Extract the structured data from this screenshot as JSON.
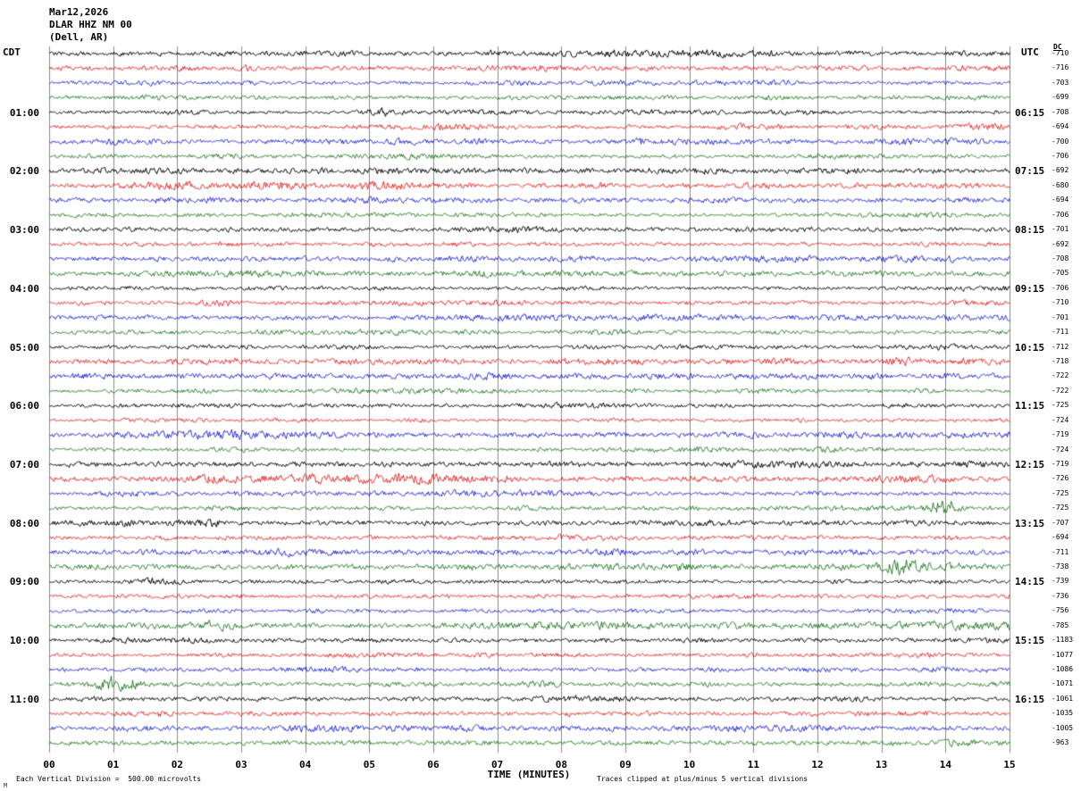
{
  "header": {
    "date_line": "Mar12,2026",
    "station_line": "DLAR HHZ NM 00",
    "location_line": "(Dell, AR)"
  },
  "axes": {
    "left_timezone": "CDT",
    "right_timezone": "UTC",
    "dc_label": "DC",
    "x_title": "TIME (MINUTES)"
  },
  "footer": {
    "division_note": "Each Vertical Division =  500.00 microvolts",
    "clip_note": "Traces clipped at plus/minus 5 vertical divisions",
    "corner_mark": "M"
  },
  "chart_data": {
    "type": "line",
    "title": "Helicorder seismogram DLAR HHZ NM 00 (Dell, AR) Mar12,2026",
    "xlabel": "TIME (MINUTES)",
    "x_range_minutes": [
      0,
      15
    ],
    "x_ticks": [
      "00",
      "01",
      "02",
      "03",
      "04",
      "05",
      "06",
      "07",
      "08",
      "09",
      "10",
      "11",
      "12",
      "13",
      "14",
      "15"
    ],
    "rows": 48,
    "minutes_per_row": 15,
    "row_color_cycle": [
      "#000000",
      "#dd0000",
      "#0000cc",
      "#006600"
    ],
    "grid_color": "#8a8a8a",
    "first_label_row": 4,
    "label_every_n_rows": 4,
    "left_time_labels": [
      "01:00",
      "02:00",
      "03:00",
      "04:00",
      "05:00",
      "06:00",
      "07:00",
      "08:00",
      "09:00",
      "10:00",
      "11:00"
    ],
    "right_time_labels": [
      "06:15",
      "07:15",
      "08:15",
      "09:15",
      "10:15",
      "11:15",
      "12:15",
      "13:15",
      "14:15",
      "15:15",
      "16:15"
    ],
    "dc_values": [
      -710,
      -716,
      -703,
      -699,
      -708,
      -694,
      -700,
      -706,
      -692,
      -680,
      -694,
      -706,
      -701,
      -692,
      -708,
      -705,
      -706,
      -710,
      -701,
      -711,
      -712,
      -718,
      -722,
      -722,
      -725,
      -724,
      -719,
      -724,
      -719,
      -726,
      -725,
      -725,
      -707,
      -694,
      -711,
      -738,
      -739,
      -736,
      -756,
      -785,
      -1183,
      -1077,
      -1086,
      -1071,
      -1061,
      -1035,
      -1005,
      -963
    ],
    "events": [
      {
        "row": 4,
        "start_min": 4.7,
        "end_min": 5.7,
        "amplitude": 2.0
      },
      {
        "row": 6,
        "start_min": 9.0,
        "end_min": 9.4,
        "amplitude": 1.8
      },
      {
        "row": 8,
        "start_min": 0.0,
        "end_min": 15.0,
        "amplitude": 0.5
      },
      {
        "row": 11,
        "start_min": 12.3,
        "end_min": 14.9,
        "amplitude": 1.2
      },
      {
        "row": 29,
        "start_min": 2.2,
        "end_min": 2.7,
        "amplitude": 3.0
      },
      {
        "row": 31,
        "start_min": 13.6,
        "end_min": 14.3,
        "amplitude": 5.5
      },
      {
        "row": 35,
        "start_min": 6.0,
        "end_min": 7.2,
        "amplitude": 1.0
      },
      {
        "row": 35,
        "start_min": 12.4,
        "end_min": 15.0,
        "amplitude": 1.6
      },
      {
        "row": 35,
        "start_min": 13.0,
        "end_min": 13.6,
        "amplitude": 4.0
      },
      {
        "row": 36,
        "start_min": 1.0,
        "end_min": 2.3,
        "amplitude": 1.3
      },
      {
        "row": 39,
        "start_min": 2.0,
        "end_min": 3.1,
        "amplitude": 2.8
      },
      {
        "row": 43,
        "start_min": 0.5,
        "end_min": 1.6,
        "amplitude": 4.0
      },
      {
        "row": 47,
        "start_min": 13.6,
        "end_min": 14.5,
        "amplitude": 1.6
      }
    ]
  }
}
